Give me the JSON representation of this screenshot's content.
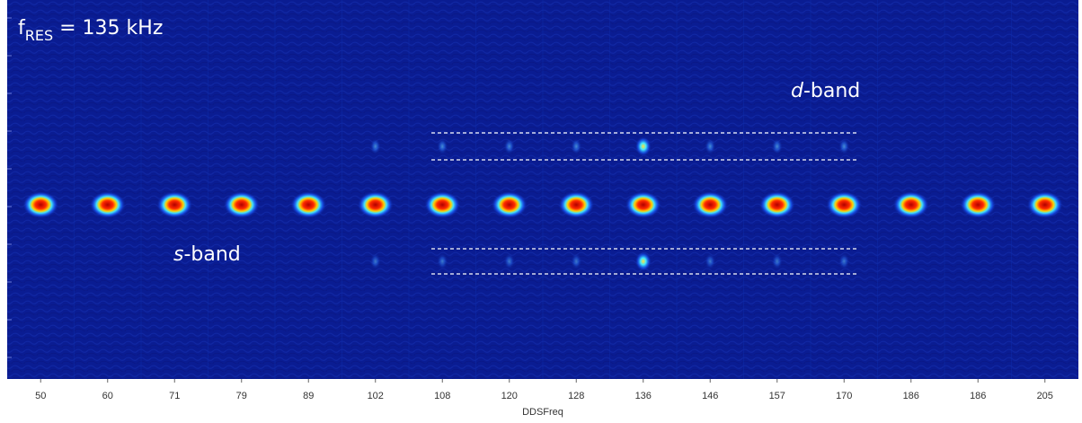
{
  "figure": {
    "resonance_label": {
      "base": "f",
      "sub": "RES",
      "rest": " = 135 kHz"
    },
    "d_band_label": {
      "italic": "d",
      "rest": "-band"
    },
    "s_band_label": {
      "italic": "s",
      "rest": "-band"
    },
    "columns": [
      "50",
      "60",
      "71",
      "79",
      "89",
      "102",
      "108",
      "120",
      "128",
      "136",
      "146",
      "157",
      "170",
      "186",
      "186",
      "205"
    ],
    "x_axis_label": "DDSFreq"
  }
}
